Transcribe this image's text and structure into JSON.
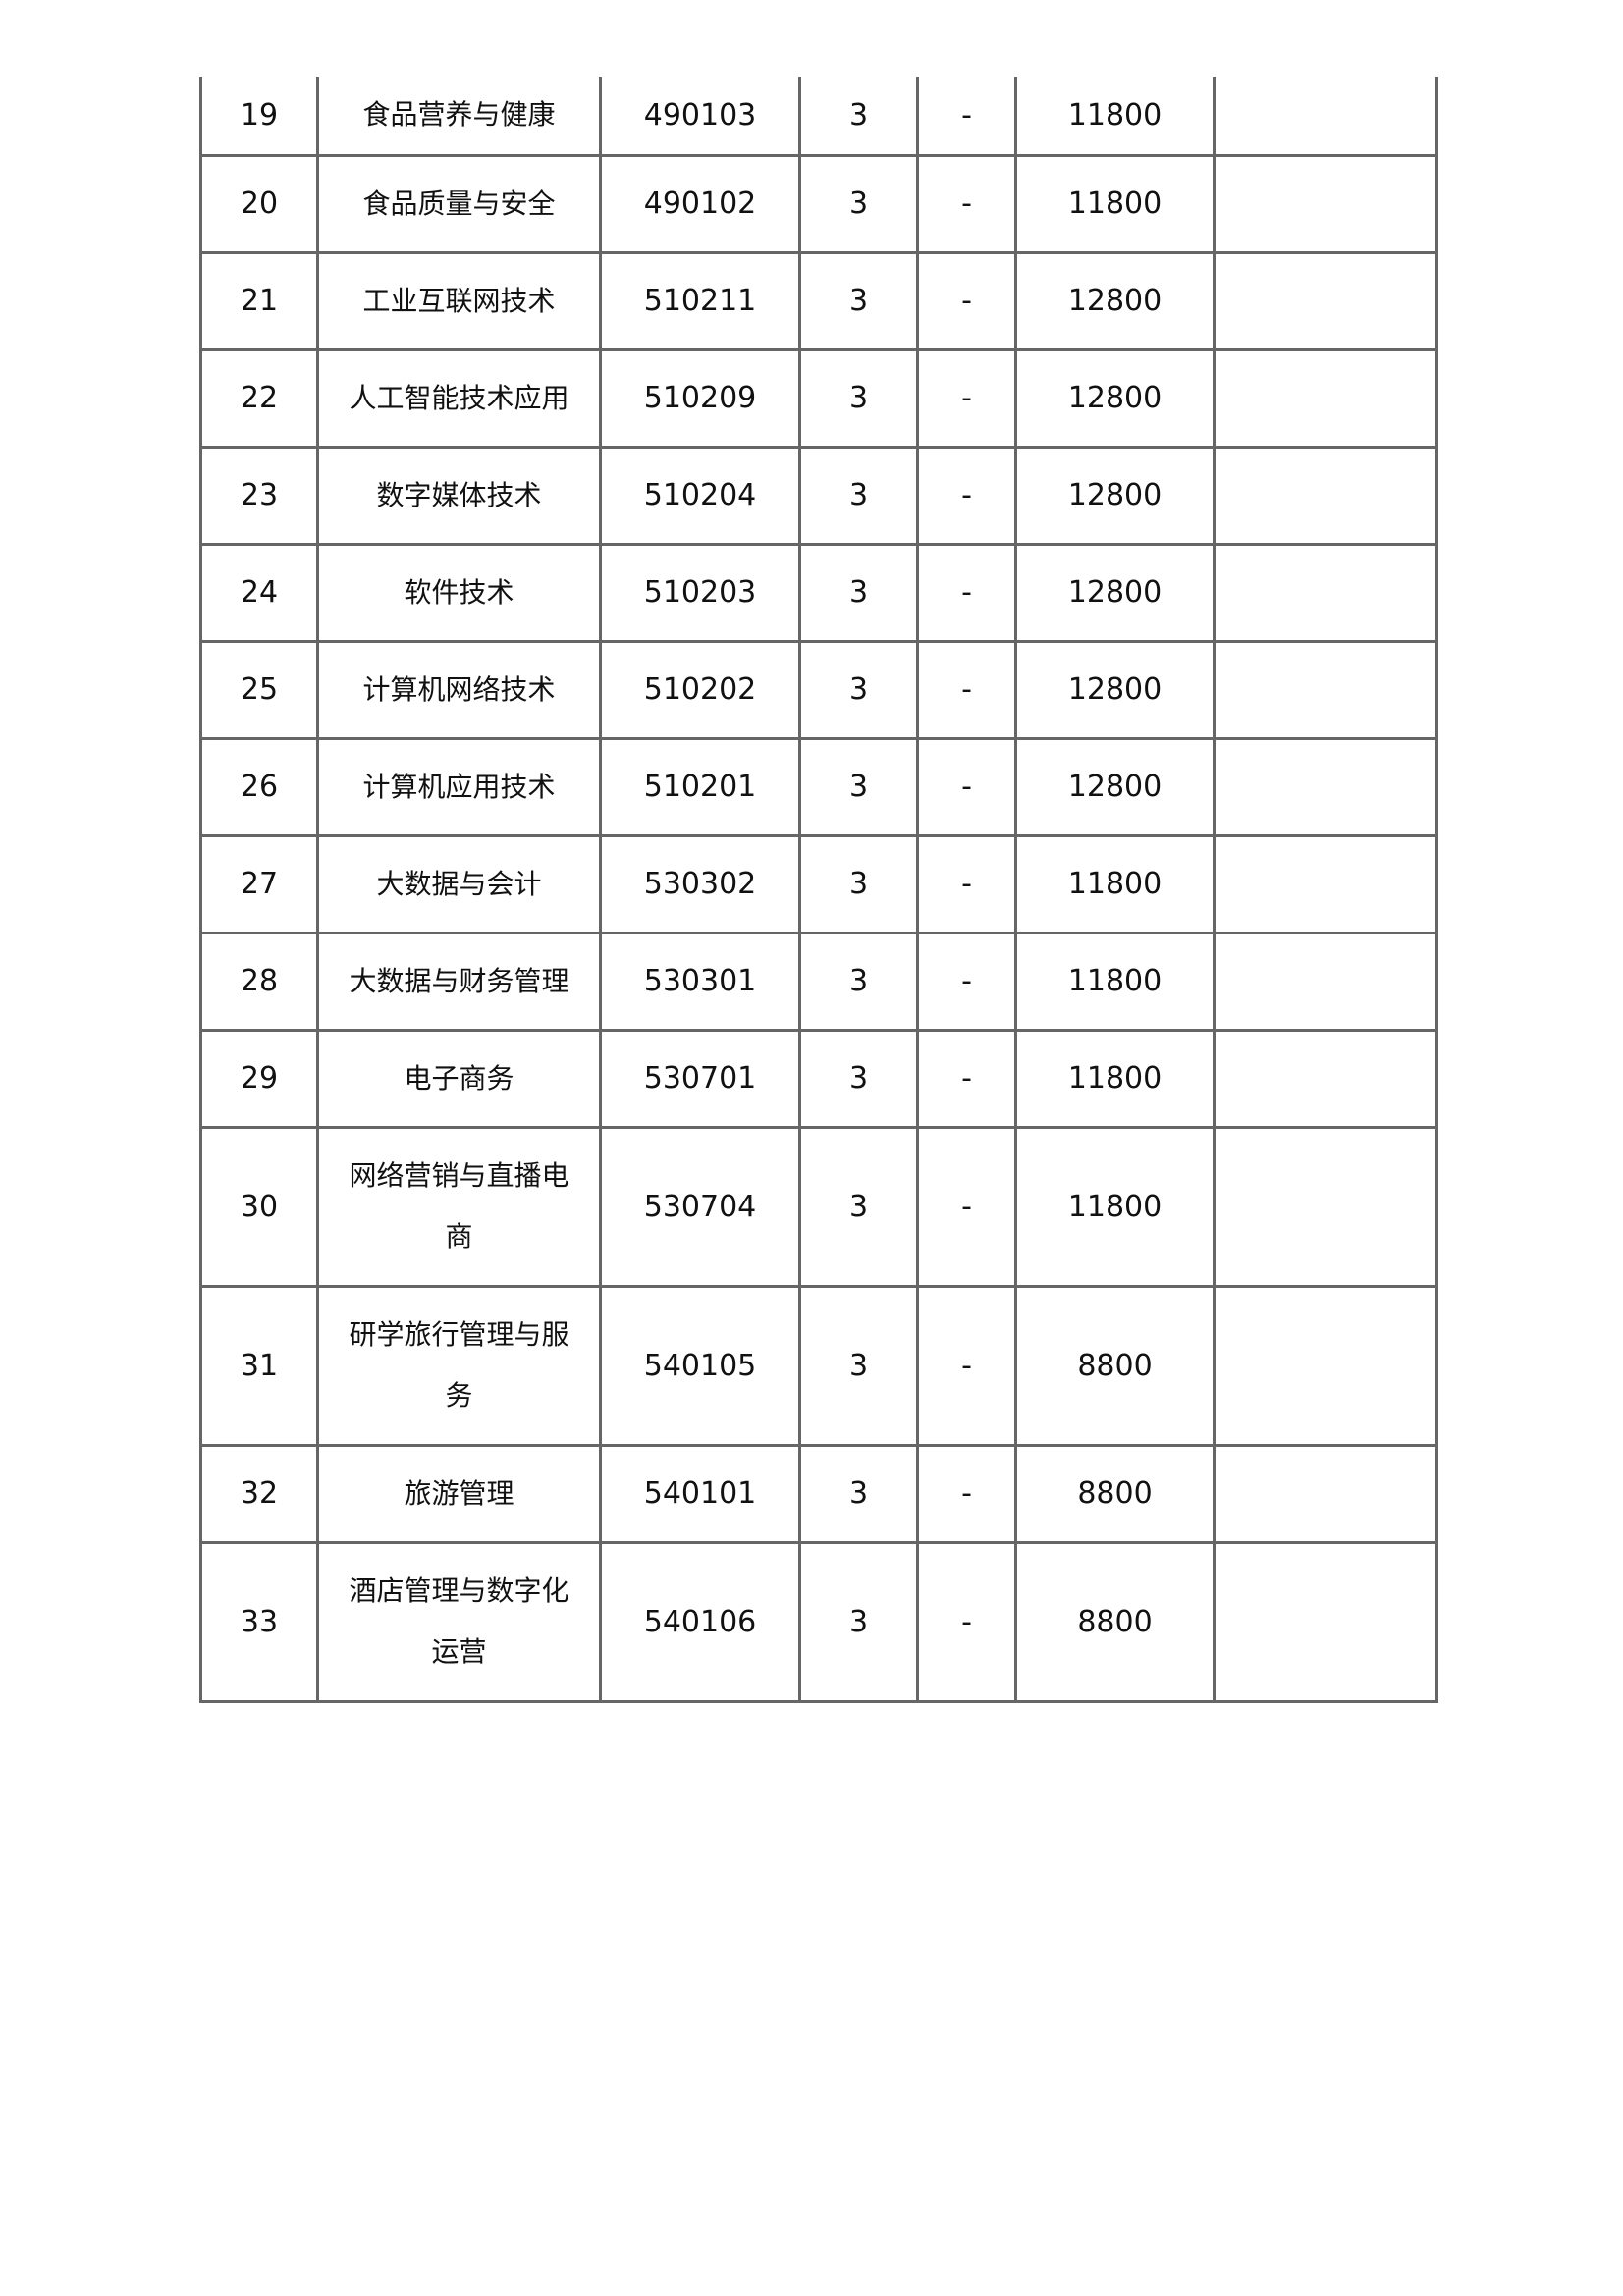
{
  "rows": [
    {
      "no": "19",
      "name": "食品营养与健康",
      "code": "490103",
      "years": "3",
      "dash": "-",
      "fee": "11800",
      "note": ""
    },
    {
      "no": "20",
      "name": "食品质量与安全",
      "code": "490102",
      "years": "3",
      "dash": "-",
      "fee": "11800",
      "note": ""
    },
    {
      "no": "21",
      "name": "工业互联网技术",
      "code": "510211",
      "years": "3",
      "dash": "-",
      "fee": "12800",
      "note": ""
    },
    {
      "no": "22",
      "name": "人工智能技术应用",
      "code": "510209",
      "years": "3",
      "dash": "-",
      "fee": "12800",
      "note": ""
    },
    {
      "no": "23",
      "name": "数字媒体技术",
      "code": "510204",
      "years": "3",
      "dash": "-",
      "fee": "12800",
      "note": ""
    },
    {
      "no": "24",
      "name": "软件技术",
      "code": "510203",
      "years": "3",
      "dash": "-",
      "fee": "12800",
      "note": ""
    },
    {
      "no": "25",
      "name": "计算机网络技术",
      "code": "510202",
      "years": "3",
      "dash": "-",
      "fee": "12800",
      "note": ""
    },
    {
      "no": "26",
      "name": "计算机应用技术",
      "code": "510201",
      "years": "3",
      "dash": "-",
      "fee": "12800",
      "note": ""
    },
    {
      "no": "27",
      "name": "大数据与会计",
      "code": "530302",
      "years": "3",
      "dash": "-",
      "fee": "11800",
      "note": ""
    },
    {
      "no": "28",
      "name": "大数据与财务管理",
      "code": "530301",
      "years": "3",
      "dash": "-",
      "fee": "11800",
      "note": ""
    },
    {
      "no": "29",
      "name": "电子商务",
      "code": "530701",
      "years": "3",
      "dash": "-",
      "fee": "11800",
      "note": ""
    },
    {
      "no": "30",
      "name": "网络营销与直播电商",
      "code": "530704",
      "years": "3",
      "dash": "-",
      "fee": "11800",
      "note": ""
    },
    {
      "no": "31",
      "name": "研学旅行管理与服务",
      "code": "540105",
      "years": "3",
      "dash": "-",
      "fee": "8800",
      "note": ""
    },
    {
      "no": "32",
      "name": "旅游管理",
      "code": "540101",
      "years": "3",
      "dash": "-",
      "fee": "8800",
      "note": ""
    },
    {
      "no": "33",
      "name": "酒店管理与数字化运营",
      "code": "540106",
      "years": "3",
      "dash": "-",
      "fee": "8800",
      "note": ""
    }
  ]
}
